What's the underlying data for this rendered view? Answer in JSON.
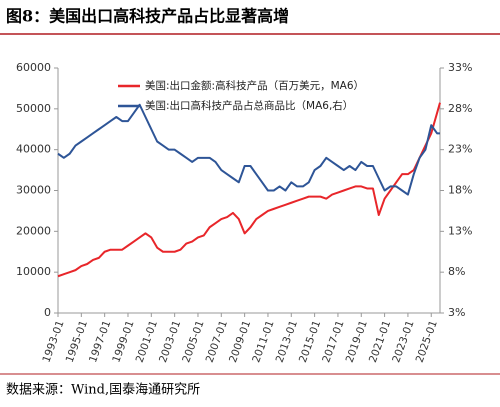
{
  "chart_data": {
    "type": "line",
    "title": "图8：美国出口高科技产品占比显著高增",
    "source": "数据来源：Wind,国泰海通研究所",
    "x": [
      "1993-01",
      "1993-07",
      "1994-01",
      "1994-07",
      "1995-01",
      "1995-07",
      "1996-01",
      "1996-07",
      "1997-01",
      "1997-07",
      "1998-01",
      "1998-07",
      "1999-01",
      "1999-07",
      "2000-01",
      "2000-07",
      "2001-01",
      "2001-07",
      "2002-01",
      "2002-07",
      "2003-01",
      "2003-07",
      "2004-01",
      "2004-07",
      "2005-01",
      "2005-07",
      "2006-01",
      "2006-07",
      "2007-01",
      "2007-07",
      "2008-01",
      "2008-07",
      "2009-01",
      "2009-07",
      "2010-01",
      "2010-07",
      "2011-01",
      "2011-07",
      "2012-01",
      "2012-07",
      "2013-01",
      "2013-07",
      "2014-01",
      "2014-07",
      "2015-01",
      "2015-07",
      "2016-01",
      "2016-07",
      "2017-01",
      "2017-07",
      "2018-01",
      "2018-07",
      "2019-01",
      "2019-07",
      "2020-01",
      "2020-07",
      "2021-01",
      "2021-07",
      "2022-01",
      "2022-07",
      "2023-01",
      "2023-07",
      "2024-01",
      "2024-07",
      "2025-01",
      "2025-07",
      "2025-10"
    ],
    "series": [
      {
        "name": "美国:出口金额:高科技产品（百万美元，MA6）",
        "color": "#e8262a",
        "axis": "y",
        "values": [
          9000,
          9500,
          10000,
          10500,
          11500,
          12000,
          13000,
          13500,
          15000,
          15500,
          15500,
          15500,
          16500,
          17500,
          18500,
          19500,
          18500,
          16000,
          15000,
          15000,
          15000,
          15500,
          17000,
          17500,
          18500,
          19000,
          21000,
          22000,
          23000,
          23500,
          24500,
          23000,
          19500,
          21000,
          23000,
          24000,
          25000,
          25500,
          26000,
          26500,
          27000,
          27500,
          28000,
          28500,
          28500,
          28500,
          28000,
          29000,
          29500,
          30000,
          30500,
          31000,
          31000,
          30500,
          30500,
          24000,
          28000,
          30000,
          32000,
          34000,
          34000,
          35000,
          38000,
          41000,
          44000,
          49000,
          51500
        ]
      },
      {
        "name": "美国:出口高科技产品占总商品比（MA6,右）",
        "color": "#2e5597",
        "axis": "y2",
        "values": [
          22.5,
          22,
          22.5,
          23.5,
          24,
          24.5,
          25,
          25.5,
          26,
          26.5,
          27,
          26.5,
          26.5,
          27.5,
          28.5,
          27,
          25.5,
          24,
          23.5,
          23,
          23,
          22.5,
          22,
          21.5,
          22,
          22,
          22,
          21.5,
          20.5,
          20,
          19.5,
          19,
          21,
          21,
          20,
          19,
          18,
          18,
          18.5,
          18,
          19,
          18.5,
          18.5,
          19,
          20.5,
          21,
          22,
          21.5,
          21,
          20.5,
          21,
          20.5,
          21.5,
          21,
          21,
          19.5,
          18,
          18.5,
          18.5,
          18,
          17.5,
          20,
          22,
          23,
          26,
          25,
          25
        ]
      }
    ],
    "xlim": [
      "1993-01",
      "2025-10"
    ],
    "xticks": [
      "1993-01",
      "1995-01",
      "1997-01",
      "1999-01",
      "2001-01",
      "2003-01",
      "2005-01",
      "2007-01",
      "2009-01",
      "2011-01",
      "2013-01",
      "2015-01",
      "2017-01",
      "2019-01",
      "2021-01",
      "2023-01",
      "2025-01"
    ],
    "ylim": [
      0,
      60000
    ],
    "yticks": [
      0,
      10000,
      20000,
      30000,
      40000,
      50000,
      60000
    ],
    "y2lim": [
      3,
      33
    ],
    "y2ticks": [
      {
        "value": 3,
        "label": "3%"
      },
      {
        "value": 8,
        "label": "8%"
      },
      {
        "value": 13,
        "label": "13%"
      },
      {
        "value": 18,
        "label": "18%"
      },
      {
        "value": 23,
        "label": "23%"
      },
      {
        "value": 28,
        "label": "28%"
      },
      {
        "value": 33,
        "label": "33%"
      }
    ]
  }
}
